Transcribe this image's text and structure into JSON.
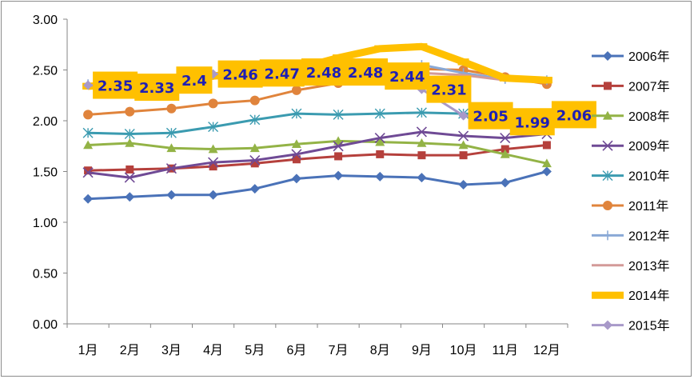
{
  "chart_data": {
    "type": "line",
    "title": "",
    "xlabel": "",
    "ylabel": "",
    "categories": [
      "1月",
      "2月",
      "3月",
      "4月",
      "5月",
      "6月",
      "7月",
      "8月",
      "9月",
      "10月",
      "11月",
      "12月"
    ],
    "ylim": [
      0,
      3.0
    ],
    "yticks": [
      "0.00",
      "0.50",
      "1.00",
      "1.50",
      "2.00",
      "2.50",
      "3.00"
    ],
    "grid": "none",
    "legend_position": "right",
    "series": [
      {
        "name": "2006年",
        "color": "#4a72b8",
        "marker": "diamond",
        "values": [
          1.23,
          1.25,
          1.27,
          1.27,
          1.33,
          1.43,
          1.46,
          1.45,
          1.44,
          1.37,
          1.39,
          1.5
        ]
      },
      {
        "name": "2007年",
        "color": "#b5403c",
        "marker": "square",
        "values": [
          1.51,
          1.52,
          1.53,
          1.55,
          1.58,
          1.62,
          1.65,
          1.67,
          1.66,
          1.66,
          1.72,
          1.76
        ]
      },
      {
        "name": "2008年",
        "color": "#93b346",
        "marker": "triangle",
        "values": [
          1.76,
          1.78,
          1.73,
          1.72,
          1.73,
          1.77,
          1.8,
          1.79,
          1.78,
          1.76,
          1.67,
          1.58
        ]
      },
      {
        "name": "2009年",
        "color": "#6f4a95",
        "marker": "x",
        "values": [
          1.49,
          1.44,
          1.53,
          1.59,
          1.61,
          1.67,
          1.75,
          1.83,
          1.89,
          1.85,
          1.83,
          1.87
        ]
      },
      {
        "name": "2010年",
        "color": "#3b9bb0",
        "marker": "star",
        "values": [
          1.88,
          1.87,
          1.88,
          1.94,
          2.01,
          2.07,
          2.06,
          2.07,
          2.08,
          2.07,
          2.06,
          2.06
        ]
      },
      {
        "name": "2011年",
        "color": "#e0843c",
        "marker": "circle",
        "values": [
          2.06,
          2.09,
          2.12,
          2.17,
          2.2,
          2.3,
          2.37,
          2.45,
          2.51,
          2.5,
          2.43,
          2.36
        ]
      },
      {
        "name": "2012年",
        "color": "#8aa9d6",
        "marker": "plus",
        "values": [
          2.36,
          2.37,
          2.41,
          2.45,
          2.46,
          2.47,
          2.48,
          2.49,
          2.55,
          2.47,
          2.41,
          2.4
        ]
      },
      {
        "name": "2013年",
        "color": "#d39a98",
        "marker": "none",
        "values": [
          2.35,
          2.37,
          2.4,
          2.44,
          2.45,
          2.45,
          2.47,
          2.48,
          2.47,
          2.45,
          2.4,
          2.39
        ]
      },
      {
        "name": "2014年",
        "color": "#ffc000",
        "marker": "dash",
        "values": [
          2.34,
          2.36,
          2.39,
          2.44,
          2.49,
          2.51,
          2.62,
          2.71,
          2.73,
          2.58,
          2.42,
          2.4
        ]
      },
      {
        "name": "2015年",
        "color": "#a899c9",
        "marker": "diamond",
        "values": [
          2.35,
          2.33,
          2.4,
          2.46,
          2.47,
          2.48,
          2.48,
          2.44,
          2.31,
          2.05,
          1.99,
          2.06
        ]
      }
    ],
    "data_labels": [
      "2.35",
      "2.33",
      "2.4",
      "2.46",
      "2.47",
      "2.48",
      "2.48",
      "2.44",
      "2.31",
      "2.05",
      "1.99",
      "2.06"
    ],
    "data_label_box_color": "#ffc000"
  }
}
